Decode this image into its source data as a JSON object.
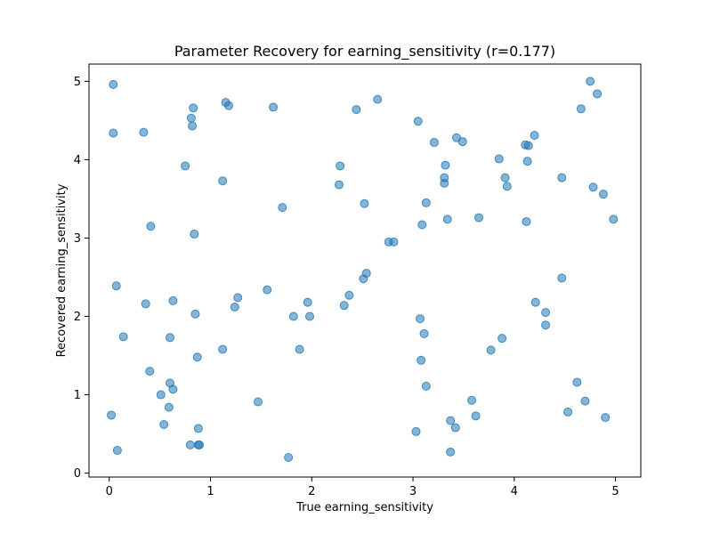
{
  "chart_data": {
    "type": "scatter",
    "title": "Parameter Recovery for earning_sensitivity (r=0.177)",
    "xlabel": "True earning_sensitivity",
    "ylabel": "Recovered earning_sensitivity",
    "xlim": [
      -0.2,
      5.25
    ],
    "ylim": [
      -0.05,
      5.22
    ],
    "xticks": [
      0,
      1,
      2,
      3,
      4,
      5
    ],
    "yticks": [
      0,
      1,
      2,
      3,
      4,
      5
    ],
    "grid": false,
    "marker_color": "#1f77b4",
    "marker_alpha": 0.55,
    "points": [
      [
        0.04,
        4.96
      ],
      [
        0.04,
        4.34
      ],
      [
        0.02,
        0.74
      ],
      [
        0.07,
        2.39
      ],
      [
        0.08,
        0.29
      ],
      [
        0.14,
        1.74
      ],
      [
        0.34,
        4.35
      ],
      [
        0.36,
        2.16
      ],
      [
        0.4,
        1.3
      ],
      [
        0.41,
        3.15
      ],
      [
        0.51,
        1.0
      ],
      [
        0.54,
        0.62
      ],
      [
        0.59,
        0.84
      ],
      [
        0.6,
        1.15
      ],
      [
        0.6,
        1.73
      ],
      [
        0.63,
        2.2
      ],
      [
        0.63,
        1.07
      ],
      [
        0.75,
        3.92
      ],
      [
        0.8,
        0.36
      ],
      [
        0.81,
        4.53
      ],
      [
        0.82,
        4.43
      ],
      [
        0.83,
        4.66
      ],
      [
        0.84,
        3.05
      ],
      [
        0.85,
        2.03
      ],
      [
        0.87,
        1.48
      ],
      [
        0.88,
        0.57
      ],
      [
        0.88,
        0.36
      ],
      [
        0.89,
        0.36
      ],
      [
        1.12,
        3.73
      ],
      [
        1.12,
        1.58
      ],
      [
        1.15,
        4.73
      ],
      [
        1.18,
        4.69
      ],
      [
        1.24,
        2.12
      ],
      [
        1.27,
        2.24
      ],
      [
        1.47,
        0.91
      ],
      [
        1.56,
        2.34
      ],
      [
        1.62,
        4.67
      ],
      [
        1.71,
        3.39
      ],
      [
        1.77,
        0.2
      ],
      [
        1.82,
        2.0
      ],
      [
        1.88,
        1.58
      ],
      [
        1.96,
        2.18
      ],
      [
        1.98,
        2.0
      ],
      [
        2.27,
        3.68
      ],
      [
        2.28,
        3.92
      ],
      [
        2.32,
        2.14
      ],
      [
        2.37,
        2.27
      ],
      [
        2.44,
        4.64
      ],
      [
        2.51,
        2.48
      ],
      [
        2.52,
        3.44
      ],
      [
        2.54,
        2.55
      ],
      [
        2.65,
        4.77
      ],
      [
        2.76,
        2.95
      ],
      [
        2.81,
        2.95
      ],
      [
        3.03,
        0.53
      ],
      [
        3.05,
        4.49
      ],
      [
        3.07,
        1.97
      ],
      [
        3.08,
        1.44
      ],
      [
        3.09,
        3.17
      ],
      [
        3.11,
        1.78
      ],
      [
        3.13,
        3.45
      ],
      [
        3.13,
        1.11
      ],
      [
        3.21,
        4.22
      ],
      [
        3.31,
        3.77
      ],
      [
        3.31,
        3.7
      ],
      [
        3.32,
        3.93
      ],
      [
        3.34,
        3.24
      ],
      [
        3.37,
        0.67
      ],
      [
        3.37,
        0.27
      ],
      [
        3.42,
        0.58
      ],
      [
        3.43,
        4.28
      ],
      [
        3.49,
        4.23
      ],
      [
        3.58,
        0.93
      ],
      [
        3.62,
        0.73
      ],
      [
        3.65,
        3.26
      ],
      [
        3.77,
        1.57
      ],
      [
        3.85,
        4.01
      ],
      [
        3.88,
        1.72
      ],
      [
        3.91,
        3.77
      ],
      [
        3.93,
        3.66
      ],
      [
        4.11,
        4.19
      ],
      [
        4.12,
        3.21
      ],
      [
        4.13,
        3.98
      ],
      [
        4.14,
        4.18
      ],
      [
        4.2,
        4.31
      ],
      [
        4.21,
        2.18
      ],
      [
        4.31,
        2.05
      ],
      [
        4.31,
        1.89
      ],
      [
        4.47,
        3.77
      ],
      [
        4.47,
        2.49
      ],
      [
        4.53,
        0.78
      ],
      [
        4.62,
        1.16
      ],
      [
        4.66,
        4.65
      ],
      [
        4.7,
        0.92
      ],
      [
        4.75,
        5.0
      ],
      [
        4.78,
        3.65
      ],
      [
        4.82,
        4.84
      ],
      [
        4.88,
        3.56
      ],
      [
        4.9,
        0.71
      ],
      [
        4.98,
        3.24
      ]
    ]
  }
}
